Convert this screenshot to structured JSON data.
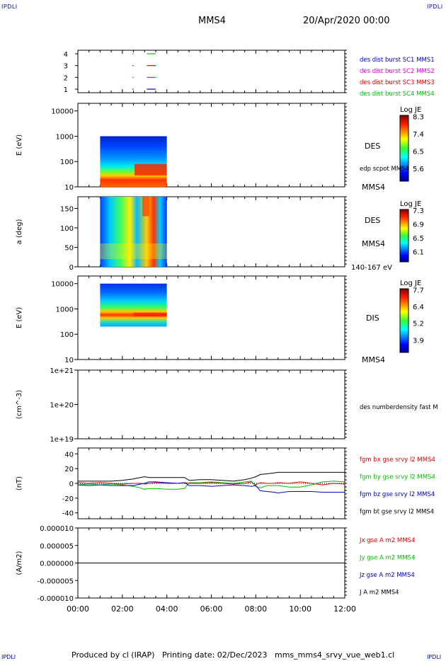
{
  "header": {
    "corner_logo": "IPDLI",
    "spacecraft": "MMS4",
    "date_time": "20/Apr/2020 00:00"
  },
  "footer": {
    "producer": "Produced by cl (IRAP)",
    "printing": "Printing date: 02/Dec/2023",
    "filename": "mms_mms4_srvy_vue_web1.cl"
  },
  "colors": {
    "axis": "#000000",
    "blue": "#0000cc",
    "magenta": "#dd00dd",
    "red": "#dd0000",
    "green": "#00bb00"
  },
  "time_axis": {
    "ticks": [
      "00:00",
      "02:00",
      "04:00",
      "06:00",
      "08:00",
      "10:00",
      "12:00"
    ],
    "range_hours": [
      0,
      12
    ]
  },
  "chart_data": [
    {
      "id": "availability",
      "type": "scatter",
      "y_ticks": [
        "1",
        "2",
        "3",
        "4"
      ],
      "legend": [
        {
          "label": "des dist burst SC1 MMS1",
          "color": "#0000cc"
        },
        {
          "label": "des dist burst SC2 MMS2",
          "color": "#dd00dd"
        },
        {
          "label": "des dist burst SC3 MMS3",
          "color": "#dd0000"
        },
        {
          "label": "des dist burst SC4 MMS4",
          "color": "#00bb00"
        }
      ],
      "segments": [
        {
          "sc": 1,
          "t0": 2.45,
          "t1": 2.5,
          "color": "#0000cc"
        },
        {
          "sc": 1,
          "t0": 3.1,
          "t1": 3.5,
          "color": "#0000cc"
        },
        {
          "sc": 2,
          "t0": 2.45,
          "t1": 2.5,
          "color": "#dd00dd"
        },
        {
          "sc": 2,
          "t0": 3.1,
          "t1": 3.5,
          "color": "#dd00dd"
        },
        {
          "sc": 3,
          "t0": 2.45,
          "t1": 2.5,
          "color": "#dd0000"
        },
        {
          "sc": 3,
          "t0": 3.1,
          "t1": 3.5,
          "color": "#dd0000"
        },
        {
          "sc": 4,
          "t0": 2.45,
          "t1": 2.5,
          "color": "#00bb00"
        },
        {
          "sc": 4,
          "t0": 3.1,
          "t1": 3.5,
          "color": "#00bb00"
        }
      ]
    },
    {
      "id": "des_energy",
      "type": "heatmap",
      "ylabel": "E (eV)",
      "y_ticks": [
        "10",
        "100",
        "1000",
        "10000"
      ],
      "y_range_log10": [
        1,
        4.3
      ],
      "t_range": [
        1.0,
        4.0
      ],
      "y_fill_log10": [
        1,
        3.0
      ],
      "cbar_title": "Log JE",
      "cbar_ticks": [
        "8.3",
        "7.4",
        "6.5",
        "5.6"
      ],
      "right_labels": [
        "DES",
        "edp scpot MMS4",
        "MMS4"
      ]
    },
    {
      "id": "des_pitch",
      "type": "heatmap",
      "ylabel": "a (deg)",
      "y_ticks": [
        "0",
        "50",
        "100",
        "150"
      ],
      "y_range": [
        0,
        180
      ],
      "t_range": [
        1.0,
        4.0
      ],
      "cbar_title": "Log JE",
      "cbar_ticks": [
        "7.3",
        "6.9",
        "6.5",
        "6.1"
      ],
      "right_labels": [
        "DES",
        "MMS4",
        "140-167 eV"
      ]
    },
    {
      "id": "dis_energy",
      "type": "heatmap",
      "ylabel": "E (eV)",
      "y_ticks": [
        "10",
        "100",
        "1000",
        "10000"
      ],
      "y_range_log10": [
        1,
        4.3
      ],
      "t_range": [
        1.0,
        4.0
      ],
      "y_fill_log10": [
        2.3,
        4.0
      ],
      "cbar_title": "Log JE",
      "cbar_ticks": [
        "7.7",
        "6.4",
        "5.2",
        "3.9"
      ],
      "right_labels": [
        "DIS",
        "MMS4"
      ]
    },
    {
      "id": "density",
      "type": "line",
      "ylabel": "(cm^-3)",
      "y_ticks": [
        "1e+19",
        "1e+20",
        "1e+21"
      ],
      "legend": [
        {
          "label": "des numberdensity fast M",
          "color": "#000000"
        }
      ],
      "series": []
    },
    {
      "id": "fgm",
      "type": "line",
      "ylabel": "(nT)",
      "y_ticks": [
        "-40",
        "-20",
        "0",
        "20",
        "40"
      ],
      "ylim": [
        -48,
        48
      ],
      "legend": [
        {
          "label": "fgm bx gse srvy l2 MMS4",
          "color": "#dd0000"
        },
        {
          "label": "fgm by gse srvy l2 MMS4",
          "color": "#00bb00"
        },
        {
          "label": "fgm bz gse srvy l2 MMS4",
          "color": "#0000cc"
        },
        {
          "label": "fgm bt gse srvy l2 MMS4",
          "color": "#000000"
        }
      ],
      "x": [
        0,
        0.5,
        1,
        1.5,
        2,
        2.5,
        2.8,
        3,
        3.2,
        3.5,
        4,
        4.5,
        4.8,
        5,
        5.5,
        6,
        6.5,
        7,
        7.5,
        7.8,
        8,
        8.2,
        8.5,
        8.8,
        9,
        9.5,
        10,
        10.5,
        11,
        11.5,
        12
      ],
      "series": [
        {
          "name": "fgm bx gse srvy l2 MMS4",
          "color": "#dd0000",
          "values": [
            1,
            0,
            1,
            0,
            -1,
            0,
            0,
            -1,
            0,
            1,
            0,
            0,
            1,
            0,
            0,
            1,
            0,
            -1,
            0,
            2,
            -2,
            1,
            0,
            0,
            1,
            0,
            2,
            0,
            -2,
            0,
            -1
          ]
        },
        {
          "name": "fgm by gse srvy l2 MMS4",
          "color": "#00bb00",
          "values": [
            -2,
            -1,
            -2,
            -1,
            -2,
            -4,
            -6,
            -8,
            -7,
            -7,
            -8,
            -8,
            -7,
            1,
            1,
            2,
            1,
            0,
            2,
            3,
            -4,
            -6,
            -3,
            -3,
            -3,
            -5,
            -5,
            -2,
            2,
            3,
            2
          ]
        },
        {
          "name": "fgm bz gse srvy l2 MMS4",
          "color": "#0000cc",
          "values": [
            -2,
            -3,
            -2,
            -3,
            -3,
            -3,
            -1,
            0,
            2,
            2,
            1,
            0,
            1,
            -3,
            -3,
            -4,
            -3,
            -2,
            -3,
            -4,
            -3,
            -10,
            -11,
            -12,
            -13,
            -11,
            -11,
            -11,
            -12,
            -12,
            -12
          ]
        },
        {
          "name": "fgm bt gse srvy l2 MMS4",
          "color": "#000000",
          "values": [
            3,
            3,
            3,
            3,
            4,
            6,
            8,
            9,
            8,
            8,
            8,
            8,
            8,
            4,
            5,
            5,
            4,
            3,
            5,
            7,
            9,
            12,
            13,
            14,
            15,
            15,
            15,
            15,
            15,
            15,
            15
          ]
        }
      ]
    },
    {
      "id": "current",
      "type": "line",
      "ylabel": "(A/m2)",
      "y_ticks": [
        "-0.000010",
        "-0.000005",
        "0.000000",
        "0.000005",
        "0.000010"
      ],
      "ylim": [
        -1e-05,
        1e-05
      ],
      "legend": [
        {
          "label": "Jx gse A m2 MMS4",
          "color": "#dd0000"
        },
        {
          "label": "Jy gse A m2 MMS4",
          "color": "#00bb00"
        },
        {
          "label": "Jz gse A m2 MMS4",
          "color": "#0000cc"
        },
        {
          "label": "J A m2 MMS4",
          "color": "#000000"
        }
      ],
      "x": [
        0,
        2,
        4,
        6,
        8,
        10,
        12
      ],
      "series": [
        {
          "name": "J A m2 MMS4",
          "color": "#000000",
          "values": [
            0,
            0,
            0,
            0,
            0,
            0,
            0
          ]
        }
      ]
    }
  ]
}
